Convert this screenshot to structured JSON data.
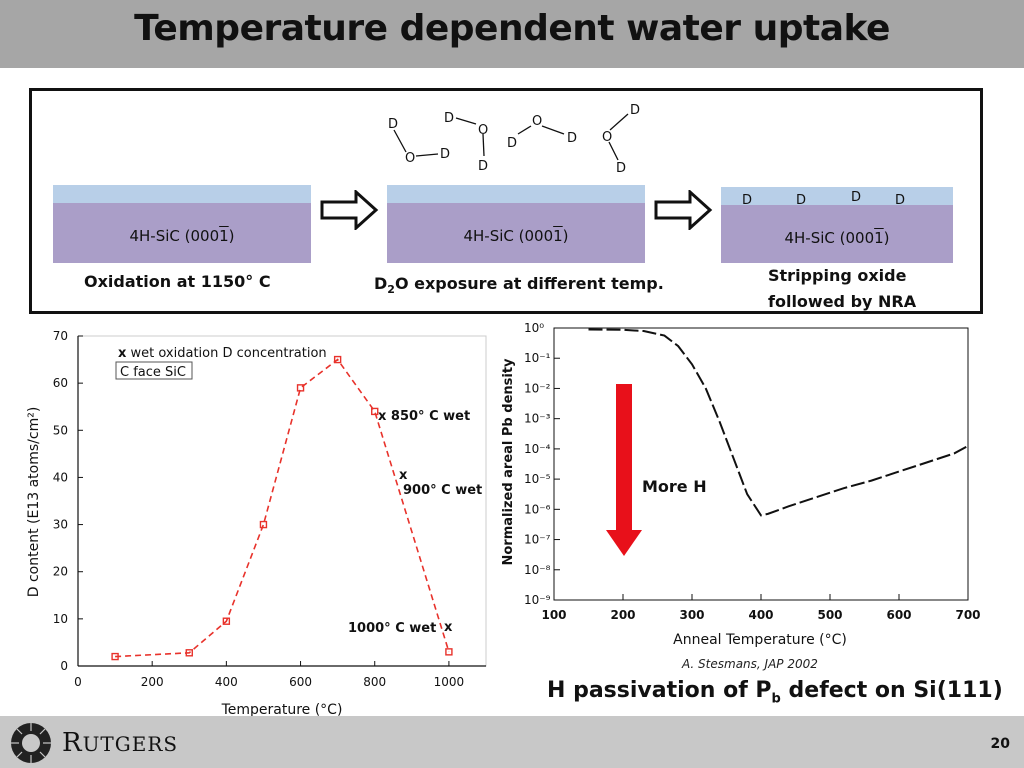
{
  "title": "Temperature dependent water uptake",
  "schematic": {
    "substrate_label": "4H-SiC (000",
    "substrate_label_bar": "1",
    "substrate_label_end": ")",
    "step1_caption": "Oxidation at 1150° C",
    "step2_caption_pre": "D",
    "step2_caption_sub": "2",
    "step2_caption_post": "O exposure at different temp.",
    "step3_caption_line1": "Stripping oxide",
    "step3_caption_line2": "followed by NRA",
    "atom_D": "D",
    "atom_O": "O"
  },
  "left_chart": {
    "legend_marker": "x",
    "legend_text": " wet oxidation D concentration",
    "box_label": "C face SiC",
    "annot_850": "x  850° C wet",
    "annot_900_x": "x",
    "annot_900": "900° C wet",
    "annot_1000": "1000° C wet",
    "annot_1000_x": "x",
    "xlabel": "Temperature (°C)",
    "ylabel": "D content (E13 atoms/cm²)"
  },
  "right_chart": {
    "ylabel": "Normalized areal Pb density",
    "xlabel": "Anneal Temperature (°C)",
    "arrow_label": "More H",
    "citation": "A. Stesmans, JAP 2002",
    "caption_pre": "H passivation of P",
    "caption_sub": "b",
    "caption_post": " defect on Si(111)"
  },
  "footer": {
    "logo_text_big": "R",
    "logo_text_rest": "UTGERS",
    "page_number": "20"
  },
  "chart_data": [
    {
      "type": "scatter",
      "title": "",
      "xlabel": "Temperature (°C)",
      "ylabel": "D content (E13 atoms/cm²)",
      "xlim": [
        0,
        1100
      ],
      "ylim": [
        0,
        70
      ],
      "xticks": [
        0,
        200,
        400,
        600,
        800,
        1000
      ],
      "yticks": [
        0,
        10,
        20,
        30,
        40,
        50,
        60,
        70
      ],
      "series": [
        {
          "name": "C face SiC",
          "color": "#e8322b",
          "x": [
            100,
            300,
            400,
            500,
            600,
            700,
            800,
            1000
          ],
          "y": [
            2,
            2.8,
            9.5,
            30,
            59,
            65,
            54,
            3
          ]
        }
      ],
      "grid": false
    },
    {
      "type": "line",
      "title": "",
      "xlabel": "Anneal Temperature (°C)",
      "ylabel": "Normalized areal Pb density",
      "xlim": [
        100,
        700
      ],
      "ylim_log10": [
        -9,
        0
      ],
      "xticks": [
        100,
        200,
        300,
        400,
        500,
        600,
        700
      ],
      "ytick_labels": [
        "10⁰",
        "10⁻¹",
        "10⁻²",
        "10⁻³",
        "10⁻⁴",
        "10⁻⁵",
        "10⁻⁶",
        "10⁻⁷",
        "10⁻⁸",
        "10⁻⁹"
      ],
      "series": [
        {
          "color": "#111111",
          "x": [
            150,
            200,
            230,
            260,
            280,
            300,
            320,
            340,
            360,
            380,
            400,
            410,
            440,
            480,
            520,
            560,
            600,
            640,
            680,
            700
          ],
          "log10_y": [
            -0.05,
            -0.06,
            -0.1,
            -0.25,
            -0.6,
            -1.2,
            -2.0,
            -3.1,
            -4.3,
            -5.5,
            -6.2,
            -6.15,
            -5.9,
            -5.6,
            -5.3,
            -5.05,
            -4.75,
            -4.45,
            -4.15,
            -3.9
          ]
        }
      ],
      "grid": false
    }
  ]
}
